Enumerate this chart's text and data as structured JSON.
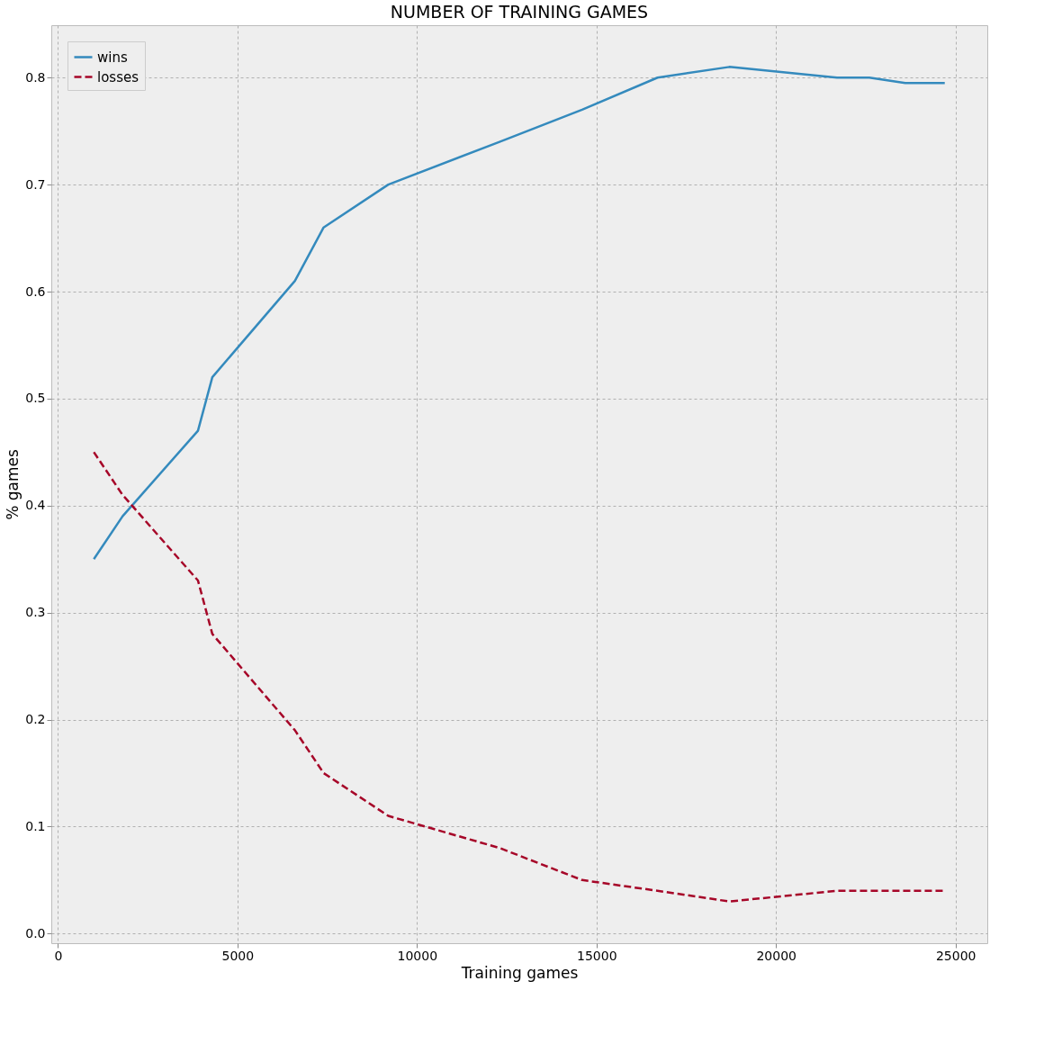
{
  "chart_data": {
    "type": "line",
    "title": "NUMBER OF TRAINING GAMES",
    "xlabel": "Training games",
    "ylabel": "% games",
    "x": [
      1000,
      1800,
      3900,
      4300,
      6600,
      7400,
      9200,
      12300,
      14600,
      16700,
      18700,
      21700,
      22600,
      23600,
      24700
    ],
    "series": [
      {
        "name": "wins",
        "color": "#348abd",
        "line_style": "solid",
        "values": [
          0.35,
          0.39,
          0.47,
          0.52,
          0.61,
          0.66,
          0.7,
          0.74,
          0.77,
          0.8,
          0.81,
          0.8,
          0.8,
          0.795,
          0.795
        ]
      },
      {
        "name": "losses",
        "color": "#a60628",
        "line_style": "dashed",
        "values": [
          0.45,
          0.41,
          0.33,
          0.28,
          0.19,
          0.15,
          0.11,
          0.08,
          0.05,
          0.04,
          0.03,
          0.04,
          0.04,
          0.04,
          0.04
        ]
      }
    ],
    "xlim": [
      -185,
      25885
    ],
    "xticks": [
      0,
      5000,
      10000,
      15000,
      20000,
      25000
    ],
    "ylim": [
      -0.009,
      0.849
    ],
    "yticks": [
      {
        "value": 0,
        "label": "0.0"
      },
      0.1,
      0.2,
      0.3,
      0.4,
      0.5,
      0.6,
      0.7,
      0.8
    ],
    "grid": true,
    "legend": "top left"
  }
}
